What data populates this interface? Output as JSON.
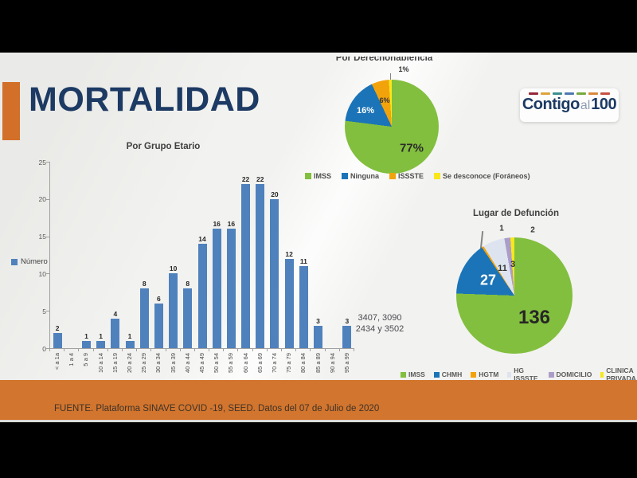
{
  "slide": {
    "title": "MORTALIDAD",
    "title_color": "#1c3a63",
    "accent_color": "#d2702a",
    "footer_band_color": "#d2752e",
    "footer_text": "FUENTE. Plataforma SINAVE COVID -19, SEED. Datos del 07 de Julio de 2020",
    "logo": {
      "word1": "Contigo",
      "word2": "al",
      "word3": "100",
      "dash_colors": [
        "#93283a",
        "#dda43c",
        "#3c8f8f",
        "#4d79b0",
        "#79a83f",
        "#d8893a",
        "#c44f41"
      ]
    }
  },
  "chart_data": [
    {
      "type": "bar",
      "title": "Por Grupo Etario",
      "series_label": "Número",
      "categories": [
        "< a 1a",
        "1 a 4",
        "5 a 9",
        "10 a 14",
        "15 a 19",
        "20 a 24",
        "25 a 29",
        "30 a 34",
        "35 a 39",
        "40 a 44",
        "45 a 49",
        "50 a 54",
        "55 a 59",
        "60 a 64",
        "65 a 69",
        "70 a 74",
        "75 a 79",
        "80 a 84",
        "85 a 89",
        "90 a 94",
        "95 a 99"
      ],
      "values": [
        2,
        0,
        1,
        1,
        4,
        1,
        8,
        6,
        10,
        8,
        14,
        16,
        16,
        22,
        22,
        20,
        12,
        11,
        3,
        0,
        3
      ],
      "ylim": [
        0,
        25
      ],
      "yticks": [
        0,
        5,
        10,
        15,
        20,
        25
      ],
      "bar_color": "#4f81bd",
      "grid": false,
      "annotation_lines": [
        "3407, 3090",
        "2434 y 3502"
      ]
    },
    {
      "type": "pie",
      "title": "Por Derechohabiencia",
      "labels": [
        "IMSS",
        "Ninguna",
        "ISSSTE",
        "Se desconoce (Foráneos)"
      ],
      "values": [
        77,
        16,
        6,
        1
      ],
      "value_unit": "%",
      "slice_labels": [
        "77%",
        "16%",
        "6%",
        "1%"
      ],
      "colors": [
        "#82bf3e",
        "#1b74b8",
        "#f2a30c",
        "#f8e71c"
      ],
      "legend_position": "bottom"
    },
    {
      "type": "pie",
      "title": "Lugar de Defunción",
      "labels": [
        "IMSS",
        "CHMH",
        "HGTM",
        "HG ISSSTE",
        "DOMICILIO",
        "CLINICA PRIVADA"
      ],
      "values": [
        136,
        27,
        1,
        11,
        3,
        2
      ],
      "colors": [
        "#82bf3e",
        "#1b74b8",
        "#f2a30c",
        "#dde4ef",
        "#ab9dc8",
        "#f8e71c"
      ],
      "legend_position": "bottom"
    }
  ]
}
